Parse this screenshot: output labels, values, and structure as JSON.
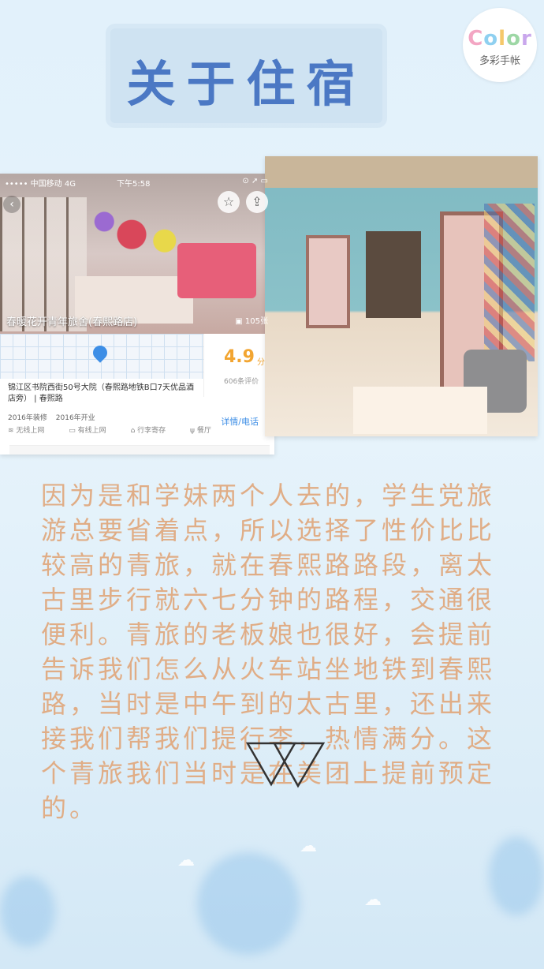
{
  "title": "关于住宿",
  "logo": {
    "word": [
      "C",
      "o",
      "l",
      "o",
      "r"
    ],
    "subtitle": "多彩手帐"
  },
  "phone": {
    "status": {
      "carrier": "••••• 中国移动  4G",
      "time": "下午5:58",
      "icons": "⊙ ➚ ▭"
    },
    "hotel_name": "春暖花开青年旅舍(春熙路店)",
    "photo_count": "105张",
    "rating": "4.9",
    "rating_unit": "分",
    "reviews": "606条评价",
    "address": "锦江区书院西街50号大院（春熙路地铁B口7天优品酒店旁） | 春熙路",
    "meta": [
      "2016年装修",
      "2016年开业"
    ],
    "details_link": "详情/电话",
    "facilities": [
      "无线上网",
      "有线上网",
      "行李寄存",
      "餐厅"
    ],
    "icons": {
      "star": "star-icon",
      "share": "share-icon",
      "back": "back-icon",
      "pin": "map-pin-icon"
    }
  },
  "story": "因为是和学妹两个人去的，学生党旅游总要省着点，所以选择了性价比比较高的青旅，就在春熙路路段，离太古里步行就六七分钟的路程，交通很便利。青旅的老板娘也很好，会提前告诉我们怎么从火车站坐地铁到春熙路，当时是中午到的太古里，还出来接我们帮我们提行李，热情满分。这个青旅我们当时是在美团上提前预定的。",
  "colors": {
    "title": "#4b78c4",
    "story": "#e0ad86",
    "rating": "#f2a531",
    "link": "#3d8ee6"
  }
}
